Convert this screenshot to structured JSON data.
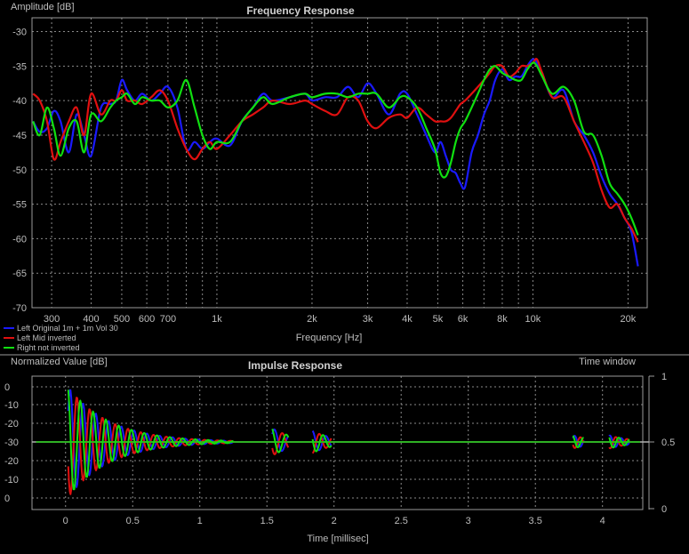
{
  "chart_data": [
    {
      "type": "line",
      "title": "Frequency Response",
      "ylabel": "Amplitude [dB]",
      "xlabel": "Frequency [Hz]",
      "xscale": "log",
      "xlim": [
        260,
        23000
      ],
      "ylim": [
        -70,
        -28
      ],
      "yticks": [
        -30,
        -35,
        -40,
        -45,
        -50,
        -55,
        -60,
        -65,
        -70
      ],
      "xticks": [
        {
          "v": 300,
          "label": "300"
        },
        {
          "v": 400,
          "label": "400"
        },
        {
          "v": 500,
          "label": "500"
        },
        {
          "v": 600,
          "label": "600"
        },
        {
          "v": 700,
          "label": "700"
        },
        {
          "v": 1000,
          "label": "1k"
        },
        {
          "v": 2000,
          "label": "2k"
        },
        {
          "v": 3000,
          "label": "3k"
        },
        {
          "v": 4000,
          "label": "4k"
        },
        {
          "v": 5000,
          "label": "5k"
        },
        {
          "v": 6000,
          "label": "6k"
        },
        {
          "v": 8000,
          "label": "8k"
        },
        {
          "v": 10000,
          "label": "10k"
        },
        {
          "v": 20000,
          "label": "20k"
        }
      ],
      "grid": true,
      "legend_position": "bottom-left",
      "series": [
        {
          "name": "Left Original 1m + 1m Vol 30",
          "color": "#1a1aff",
          "x": [
            262,
            275,
            290,
            305,
            320,
            340,
            360,
            380,
            400,
            430,
            460,
            480,
            500,
            520,
            550,
            580,
            620,
            660,
            700,
            750,
            800,
            850,
            900,
            950,
            1000,
            1100,
            1200,
            1300,
            1400,
            1500,
            1700,
            1900,
            2000,
            2200,
            2400,
            2600,
            2800,
            3000,
            3200,
            3500,
            3800,
            4000,
            4300,
            4600,
            4900,
            5100,
            5300,
            5500,
            5700,
            5900,
            6100,
            6400,
            6700,
            7000,
            7300,
            7600,
            8000,
            8400,
            8800,
            9200,
            9600,
            10000,
            10300,
            10700,
            11500,
            12500,
            13500,
            14500,
            15500,
            16500,
            17500,
            18500,
            19500,
            20500,
            21500
          ],
          "y": [
            -43,
            -44.5,
            -44,
            -41.5,
            -43,
            -47.5,
            -42,
            -45,
            -48,
            -41,
            -40.5,
            -40,
            -37,
            -38.5,
            -40,
            -39,
            -40,
            -39,
            -38,
            -41,
            -47,
            -46,
            -47,
            -46,
            -45.5,
            -46.5,
            -43,
            -41,
            -39,
            -40,
            -39.5,
            -39,
            -40,
            -39.5,
            -39.5,
            -38,
            -39.5,
            -37.5,
            -39,
            -42,
            -39,
            -39,
            -42,
            -45,
            -47.5,
            -46,
            -48,
            -50,
            -50.5,
            -52,
            -52.5,
            -47.5,
            -45,
            -42,
            -40,
            -37,
            -35.5,
            -37,
            -36.5,
            -36.5,
            -35,
            -34,
            -34.5,
            -36,
            -39.5,
            -38.5,
            -43,
            -45,
            -47.5,
            -51,
            -53.5,
            -55,
            -57,
            -59,
            -64
          ]
        },
        {
          "name": "Left Mid inverted",
          "color": "#e01010",
          "x": [
            262,
            275,
            290,
            305,
            320,
            340,
            360,
            380,
            400,
            430,
            460,
            480,
            500,
            520,
            550,
            580,
            620,
            660,
            700,
            750,
            800,
            850,
            900,
            950,
            1000,
            1100,
            1200,
            1300,
            1400,
            1500,
            1700,
            1900,
            2000,
            2200,
            2400,
            2600,
            2800,
            3000,
            3200,
            3500,
            3800,
            4000,
            4300,
            4600,
            4900,
            5100,
            5300,
            5500,
            5700,
            5900,
            6100,
            6400,
            6700,
            7000,
            7300,
            7600,
            8000,
            8400,
            8800,
            9200,
            9600,
            10000,
            10300,
            10700,
            11500,
            12500,
            13500,
            14500,
            15500,
            16500,
            17500,
            18500,
            19500,
            20500,
            21500
          ],
          "y": [
            -39,
            -40,
            -43,
            -48.5,
            -46,
            -43,
            -41,
            -45,
            -39,
            -42,
            -40,
            -40,
            -38.5,
            -40,
            -40,
            -40.5,
            -39.5,
            -38.5,
            -40,
            -44,
            -47,
            -48.5,
            -47,
            -46,
            -47,
            -45,
            -43,
            -42,
            -41,
            -40,
            -40.5,
            -40,
            -40.5,
            -41.5,
            -42,
            -39.5,
            -40,
            -43,
            -44,
            -42.5,
            -42,
            -42.5,
            -41,
            -42,
            -43,
            -43,
            -43,
            -42.5,
            -41.5,
            -40.5,
            -40,
            -39,
            -38,
            -37,
            -36,
            -35,
            -35,
            -36.5,
            -36,
            -35,
            -35,
            -34.5,
            -34,
            -36,
            -39.5,
            -39.5,
            -43,
            -46,
            -49,
            -53,
            -55.5,
            -55,
            -57,
            -58.5,
            -60.5
          ]
        },
        {
          "name": "Right not inverted",
          "color": "#10e010",
          "x": [
            262,
            275,
            290,
            305,
            320,
            340,
            360,
            380,
            400,
            430,
            460,
            480,
            500,
            520,
            550,
            580,
            620,
            660,
            700,
            750,
            800,
            850,
            900,
            950,
            1000,
            1100,
            1200,
            1300,
            1400,
            1500,
            1700,
            1900,
            2000,
            2200,
            2400,
            2600,
            2800,
            3000,
            3200,
            3500,
            3800,
            4000,
            4300,
            4600,
            4900,
            5100,
            5300,
            5500,
            5700,
            5900,
            6100,
            6400,
            6700,
            7000,
            7300,
            7600,
            8000,
            8400,
            8800,
            9200,
            9600,
            10000,
            10300,
            10700,
            11500,
            12500,
            13500,
            14500,
            15500,
            16500,
            17500,
            18500,
            19500,
            20500,
            21500
          ],
          "y": [
            -43,
            -45,
            -41,
            -44,
            -48,
            -44,
            -43,
            -47.5,
            -42,
            -43,
            -41,
            -40,
            -39.5,
            -39,
            -40.5,
            -39.5,
            -40,
            -40,
            -41,
            -40,
            -37,
            -41,
            -45,
            -47,
            -46,
            -46,
            -43,
            -41,
            -39.5,
            -40.5,
            -39.5,
            -39,
            -39.5,
            -39,
            -39,
            -39.5,
            -39,
            -39,
            -39,
            -41,
            -39.5,
            -39.5,
            -41,
            -44,
            -47,
            -50.5,
            -51,
            -49,
            -46,
            -44,
            -43,
            -41,
            -39,
            -37,
            -35.5,
            -35,
            -36,
            -36.5,
            -37,
            -37,
            -35.5,
            -34.5,
            -35,
            -36.5,
            -39,
            -38,
            -40,
            -44.5,
            -45,
            -48,
            -52,
            -53.5,
            -55,
            -57,
            -59.5
          ]
        }
      ]
    },
    {
      "type": "line",
      "title": "Impulse Response",
      "ylabel": "Normalized Value [dB]",
      "xlabel": "Time [millisec]",
      "xlim": [
        -0.25,
        4.3
      ],
      "ylim": [
        -35,
        5
      ],
      "xticks": [
        "0",
        "0.5",
        "1",
        "1.5",
        "2",
        "2.5",
        "3",
        "3.5",
        "4"
      ],
      "yticks_left": [
        "0",
        "-10",
        "-20",
        "-30",
        "-20",
        "-10",
        "0"
      ],
      "right_axis_label": "Time window",
      "yticks_right": [
        "1",
        "0.5",
        "0"
      ],
      "baseline": -30,
      "grid": true,
      "series": [
        {
          "name": "Left Original 1m + 1m Vol 30",
          "color": "#1a1aff"
        },
        {
          "name": "Left Mid inverted",
          "color": "#e01010"
        },
        {
          "name": "Right not inverted",
          "color": "#10e010"
        }
      ]
    }
  ]
}
